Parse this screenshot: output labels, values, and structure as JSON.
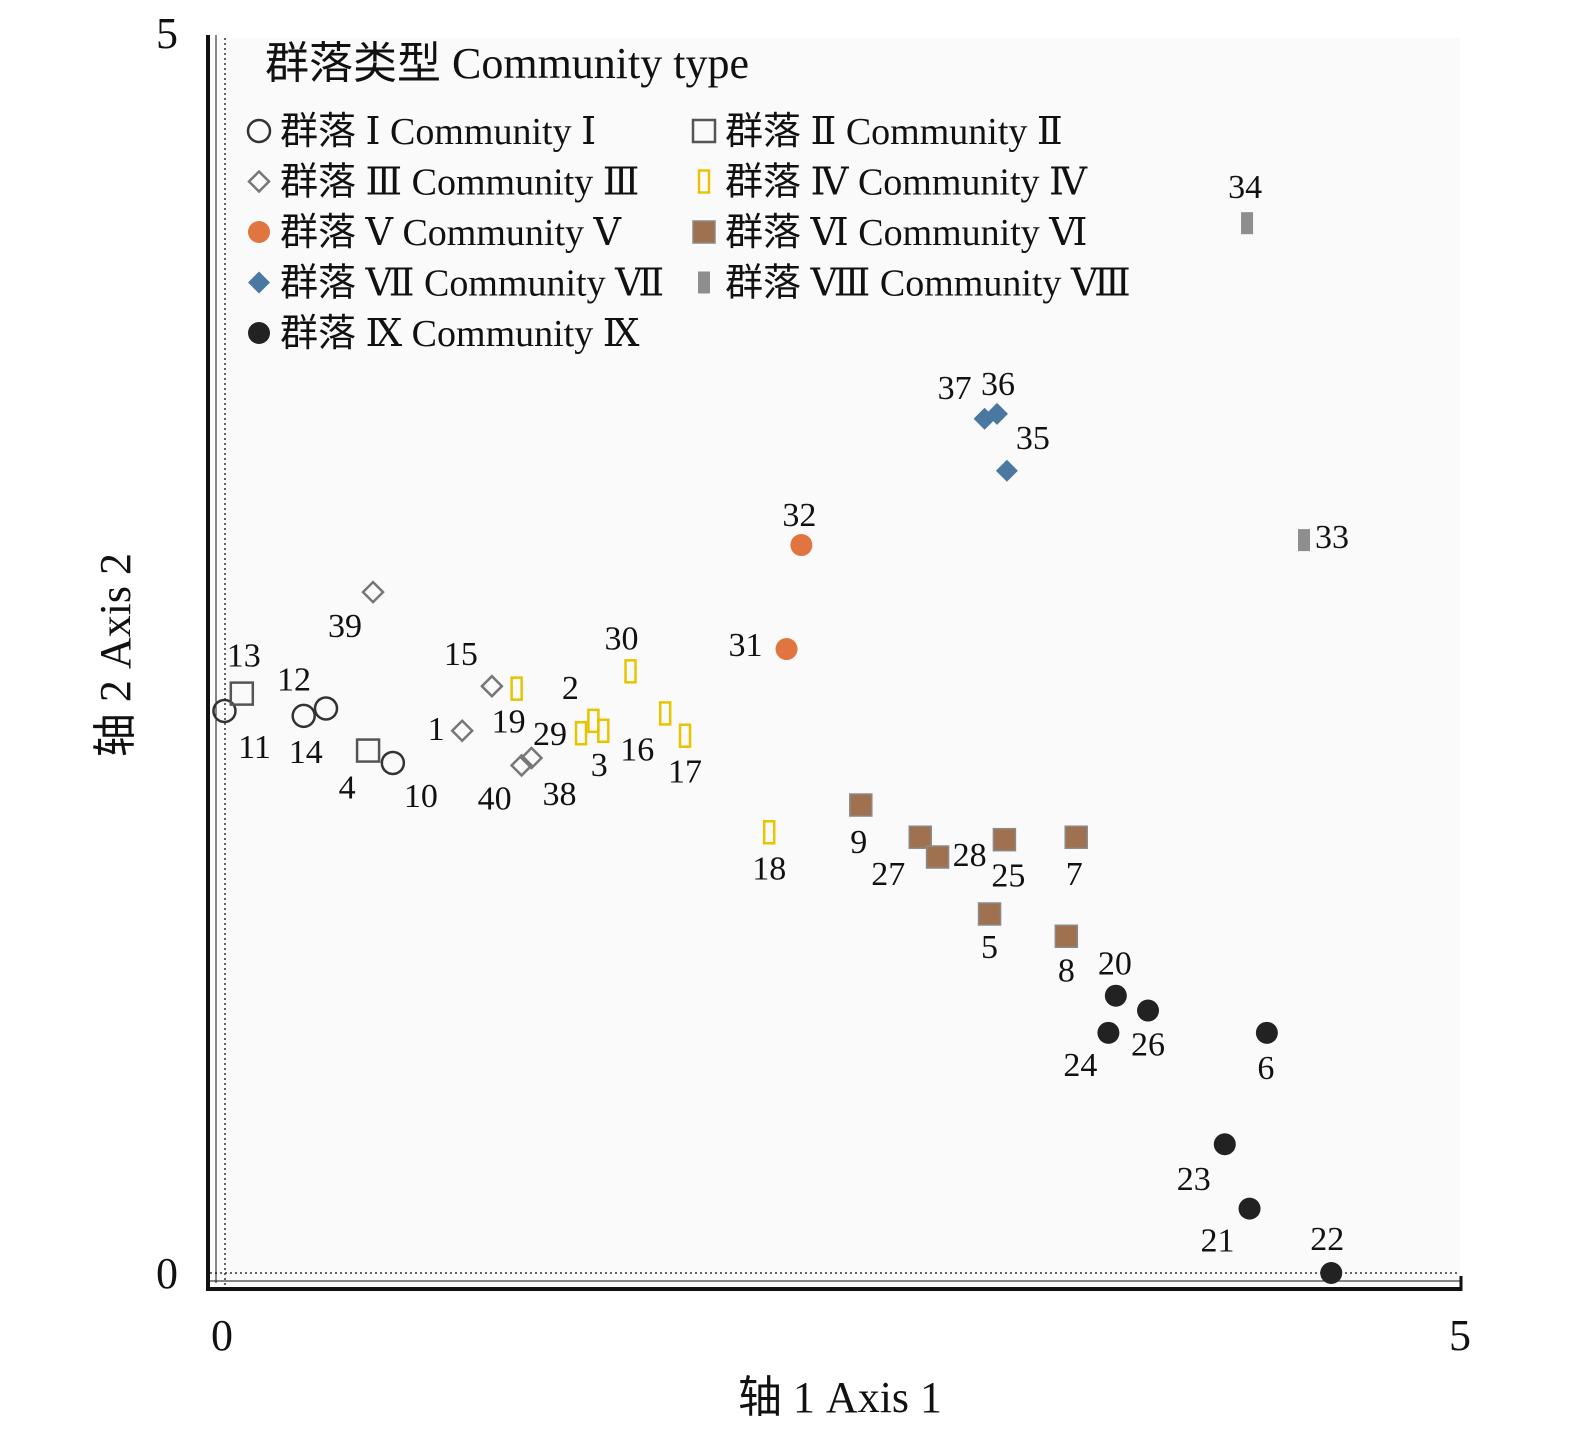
{
  "chart_data": {
    "type": "scatter",
    "title": "",
    "xlabel": "轴 1 Axis 1",
    "ylabel": "轴 2 Axis 2",
    "xlim": [
      0,
      5
    ],
    "ylim": [
      0,
      5
    ],
    "xticks": [
      "0",
      "5"
    ],
    "yticks": [
      "0",
      "5"
    ],
    "grid": false,
    "legend": {
      "title": "群落类型 Community type",
      "placement": "top-left",
      "entries": [
        "群落 Ⅰ Community Ⅰ",
        "群落 Ⅱ Community Ⅱ",
        "群落 Ⅲ Community Ⅲ",
        "群落 Ⅳ Community Ⅳ",
        "群落 Ⅴ Community Ⅴ",
        "群落 Ⅵ Community Ⅵ",
        "群落 Ⅶ Community Ⅶ",
        "群落 Ⅷ Community Ⅷ",
        "群落 Ⅸ Community Ⅸ"
      ]
    },
    "series": [
      {
        "name": "群落 Ⅰ Community Ⅰ",
        "marker": "open-circle",
        "color": "#333333",
        "points": [
          {
            "id": "11",
            "x": 0.01,
            "y": 2.27
          },
          {
            "id": "12",
            "x": 0.42,
            "y": 2.28
          },
          {
            "id": "14",
            "x": 0.33,
            "y": 2.25
          },
          {
            "id": "10",
            "x": 0.69,
            "y": 2.06
          }
        ]
      },
      {
        "name": "群落 Ⅱ Community Ⅱ",
        "marker": "open-square",
        "color": "#555555",
        "points": [
          {
            "id": "13",
            "x": 0.08,
            "y": 2.34
          },
          {
            "id": "4",
            "x": 0.59,
            "y": 2.11
          }
        ]
      },
      {
        "name": "群落 Ⅲ Community Ⅲ",
        "marker": "open-diamond",
        "color": "#777777",
        "points": [
          {
            "id": "39",
            "x": 0.61,
            "y": 2.75
          },
          {
            "id": "15",
            "x": 1.09,
            "y": 2.37
          },
          {
            "id": "1",
            "x": 0.97,
            "y": 2.19
          },
          {
            "id": "40",
            "x": 1.21,
            "y": 2.05
          },
          {
            "id": "38",
            "x": 1.25,
            "y": 2.08
          }
        ]
      },
      {
        "name": "群落 Ⅳ Community Ⅳ",
        "marker": "open-rect",
        "color": "#E8C400",
        "points": [
          {
            "id": "19",
            "x": 1.19,
            "y": 2.36
          },
          {
            "id": "30",
            "x": 1.65,
            "y": 2.43
          },
          {
            "id": "2",
            "x": 1.5,
            "y": 2.23
          },
          {
            "id": "29",
            "x": 1.45,
            "y": 2.18
          },
          {
            "id": "3",
            "x": 1.54,
            "y": 2.19
          },
          {
            "id": "16",
            "x": 1.79,
            "y": 2.26
          },
          {
            "id": "17",
            "x": 1.87,
            "y": 2.17
          },
          {
            "id": "18",
            "x": 2.21,
            "y": 1.78
          }
        ]
      },
      {
        "name": "群落 Ⅴ Community Ⅴ",
        "marker": "filled-circle",
        "color": "#E0753F",
        "points": [
          {
            "id": "32",
            "x": 2.34,
            "y": 2.94
          },
          {
            "id": "31",
            "x": 2.28,
            "y": 2.52
          }
        ]
      },
      {
        "name": "群落 Ⅵ Community Ⅵ",
        "marker": "filled-square",
        "color": "#A0714F",
        "points": [
          {
            "id": "9",
            "x": 2.58,
            "y": 1.89
          },
          {
            "id": "27",
            "x": 2.82,
            "y": 1.76
          },
          {
            "id": "28",
            "x": 2.89,
            "y": 1.68
          },
          {
            "id": "25",
            "x": 3.16,
            "y": 1.75
          },
          {
            "id": "7",
            "x": 3.45,
            "y": 1.76
          },
          {
            "id": "5",
            "x": 3.1,
            "y": 1.45
          },
          {
            "id": "8",
            "x": 3.41,
            "y": 1.36
          }
        ]
      },
      {
        "name": "群落 Ⅶ Community Ⅶ",
        "marker": "filled-diamond",
        "color": "#4A78A0",
        "points": [
          {
            "id": "37",
            "x": 3.08,
            "y": 3.45
          },
          {
            "id": "36",
            "x": 3.13,
            "y": 3.47
          },
          {
            "id": "35",
            "x": 3.17,
            "y": 3.24
          }
        ]
      },
      {
        "name": "群落 Ⅷ Community Ⅷ",
        "marker": "filled-rect",
        "color": "#8E8E8E",
        "points": [
          {
            "id": "34",
            "x": 4.14,
            "y": 4.24
          },
          {
            "id": "33",
            "x": 4.37,
            "y": 2.96
          }
        ]
      },
      {
        "name": "群落 Ⅸ Community Ⅸ",
        "marker": "filled-circle",
        "color": "#222222",
        "points": [
          {
            "id": "20",
            "x": 3.61,
            "y": 1.12
          },
          {
            "id": "26",
            "x": 3.74,
            "y": 1.06
          },
          {
            "id": "24",
            "x": 3.58,
            "y": 0.97
          },
          {
            "id": "6",
            "x": 4.22,
            "y": 0.97
          },
          {
            "id": "23",
            "x": 4.05,
            "y": 0.52
          },
          {
            "id": "21",
            "x": 4.15,
            "y": 0.26
          },
          {
            "id": "22",
            "x": 4.48,
            "y": 0.0
          }
        ]
      }
    ]
  }
}
